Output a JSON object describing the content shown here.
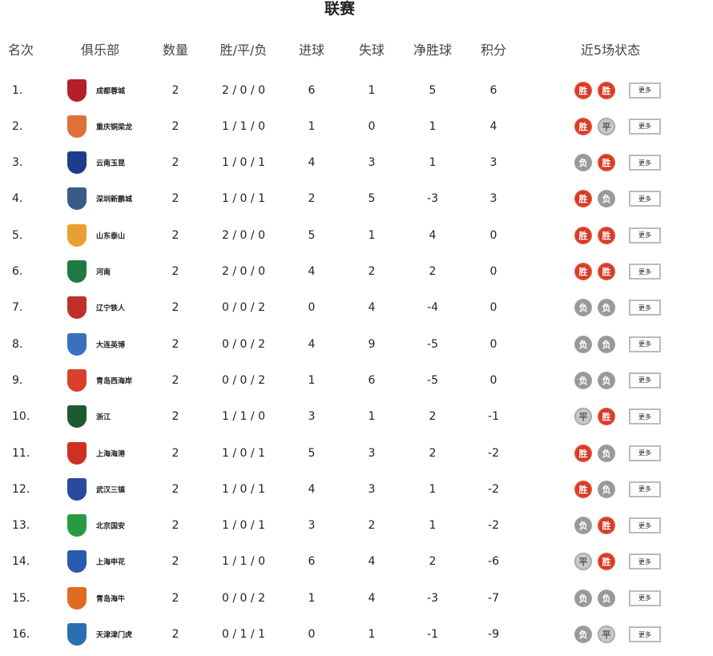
{
  "title": "联赛",
  "headers": {
    "rank": "名次",
    "club": "俱乐部",
    "played": "数量",
    "wdl": "胜/平/负",
    "goals_for": "进球",
    "goals_against": "失球",
    "goal_diff": "净胜球",
    "points": "积分",
    "form": "近5场状态"
  },
  "more_label": "更多",
  "form_labels": {
    "W": "胜",
    "D": "平",
    "L": "负"
  },
  "rows": [
    {
      "rank": "1.",
      "club": "成都蓉城",
      "played": "2",
      "wdl": "2 / 0 / 0",
      "gf": "6",
      "ga": "1",
      "gd": "5",
      "pts": "6",
      "form": [
        "W",
        "W"
      ],
      "color": "#b3202a"
    },
    {
      "rank": "2.",
      "club": "重庆铜梁龙",
      "played": "2",
      "wdl": "1 / 1 / 0",
      "gf": "1",
      "ga": "0",
      "gd": "1",
      "pts": "4",
      "form": [
        "W",
        "D"
      ],
      "color": "#e0703a"
    },
    {
      "rank": "3.",
      "club": "云南玉昆",
      "played": "2",
      "wdl": "1 / 0 / 1",
      "gf": "4",
      "ga": "3",
      "gd": "1",
      "pts": "3",
      "form": [
        "L",
        "W"
      ],
      "color": "#1d3d8a"
    },
    {
      "rank": "4.",
      "club": "深圳新鹏城",
      "played": "2",
      "wdl": "1 / 0 / 1",
      "gf": "2",
      "ga": "5",
      "gd": "-3",
      "pts": "3",
      "form": [
        "W",
        "L"
      ],
      "color": "#3a5a8a"
    },
    {
      "rank": "5.",
      "club": "山东泰山",
      "played": "2",
      "wdl": "2 / 0 / 0",
      "gf": "5",
      "ga": "1",
      "gd": "4",
      "pts": "0",
      "form": [
        "W",
        "W"
      ],
      "color": "#e8a030"
    },
    {
      "rank": "6.",
      "club": "河南",
      "played": "2",
      "wdl": "2 / 0 / 0",
      "gf": "4",
      "ga": "2",
      "gd": "2",
      "pts": "0",
      "form": [
        "W",
        "W"
      ],
      "color": "#1e7a40"
    },
    {
      "rank": "7.",
      "club": "辽宁铁人",
      "played": "2",
      "wdl": "0 / 0 / 2",
      "gf": "0",
      "ga": "4",
      "gd": "-4",
      "pts": "0",
      "form": [
        "L",
        "L"
      ],
      "color": "#c0302a"
    },
    {
      "rank": "8.",
      "club": "大连英博",
      "played": "2",
      "wdl": "0 / 0 / 2",
      "gf": "4",
      "ga": "9",
      "gd": "-5",
      "pts": "0",
      "form": [
        "L",
        "L"
      ],
      "color": "#3a70c0"
    },
    {
      "rank": "9.",
      "club": "青岛西海岸",
      "played": "2",
      "wdl": "0 / 0 / 2",
      "gf": "1",
      "ga": "6",
      "gd": "-5",
      "pts": "0",
      "form": [
        "L",
        "L"
      ],
      "color": "#d8402a"
    },
    {
      "rank": "10.",
      "club": "浙江",
      "played": "2",
      "wdl": "1 / 1 / 0",
      "gf": "3",
      "ga": "1",
      "gd": "2",
      "pts": "-1",
      "form": [
        "D",
        "W"
      ],
      "color": "#1e5a30"
    },
    {
      "rank": "11.",
      "club": "上海海港",
      "played": "2",
      "wdl": "1 / 0 / 1",
      "gf": "5",
      "ga": "3",
      "gd": "2",
      "pts": "-2",
      "form": [
        "W",
        "L"
      ],
      "color": "#d03020"
    },
    {
      "rank": "12.",
      "club": "武汉三镇",
      "played": "2",
      "wdl": "1 / 0 / 1",
      "gf": "4",
      "ga": "3",
      "gd": "1",
      "pts": "-2",
      "form": [
        "W",
        "L"
      ],
      "color": "#2a4aa0"
    },
    {
      "rank": "13.",
      "club": "北京国安",
      "played": "2",
      "wdl": "1 / 0 / 1",
      "gf": "3",
      "ga": "2",
      "gd": "1",
      "pts": "-2",
      "form": [
        "L",
        "W"
      ],
      "color": "#2a9a40"
    },
    {
      "rank": "14.",
      "club": "上海申花",
      "played": "2",
      "wdl": "1 / 1 / 0",
      "gf": "6",
      "ga": "4",
      "gd": "2",
      "pts": "-6",
      "form": [
        "D",
        "W"
      ],
      "color": "#2a5ab0"
    },
    {
      "rank": "15.",
      "club": "青岛海牛",
      "played": "2",
      "wdl": "0 / 0 / 2",
      "gf": "1",
      "ga": "4",
      "gd": "-3",
      "pts": "-7",
      "form": [
        "L",
        "L"
      ],
      "color": "#e06a20"
    },
    {
      "rank": "16.",
      "club": "天津津门虎",
      "played": "2",
      "wdl": "0 / 1 / 1",
      "gf": "0",
      "ga": "1",
      "gd": "-1",
      "pts": "-9",
      "form": [
        "L",
        "D"
      ],
      "color": "#2a70b0"
    }
  ]
}
